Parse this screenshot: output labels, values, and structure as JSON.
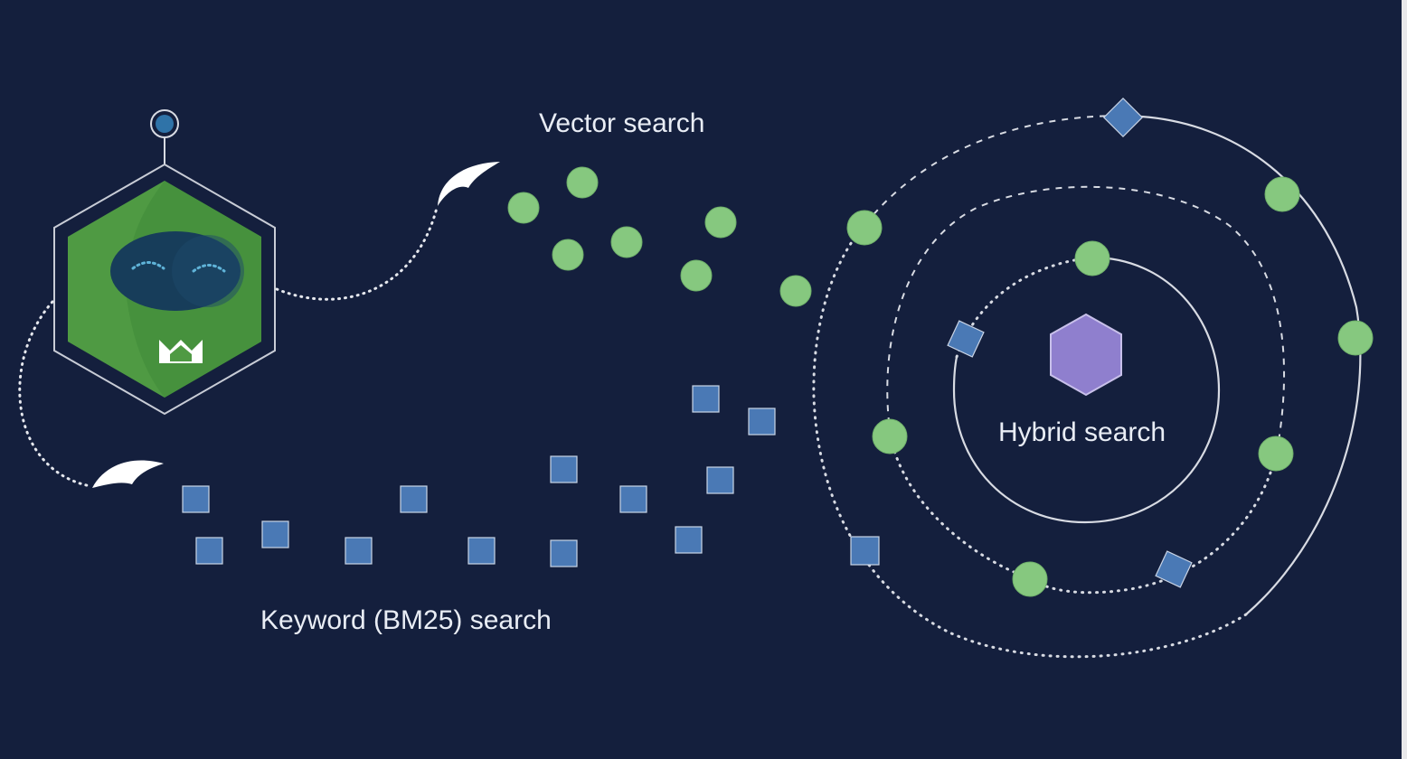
{
  "labels": {
    "vector": "Vector search",
    "keyword": "Keyword (BM25) search",
    "hybrid": "Hybrid search"
  },
  "colors": {
    "background": "#141f3d",
    "vector_point": "#86c87f",
    "keyword_point": "#4a79b5",
    "hybrid_core": "#8f7fce",
    "robot_green": "#4f9a43",
    "orbit_line": "#d8dbe3"
  },
  "icons": [
    "robot-logo-icon",
    "beak-icon",
    "hexagon-icon"
  ]
}
